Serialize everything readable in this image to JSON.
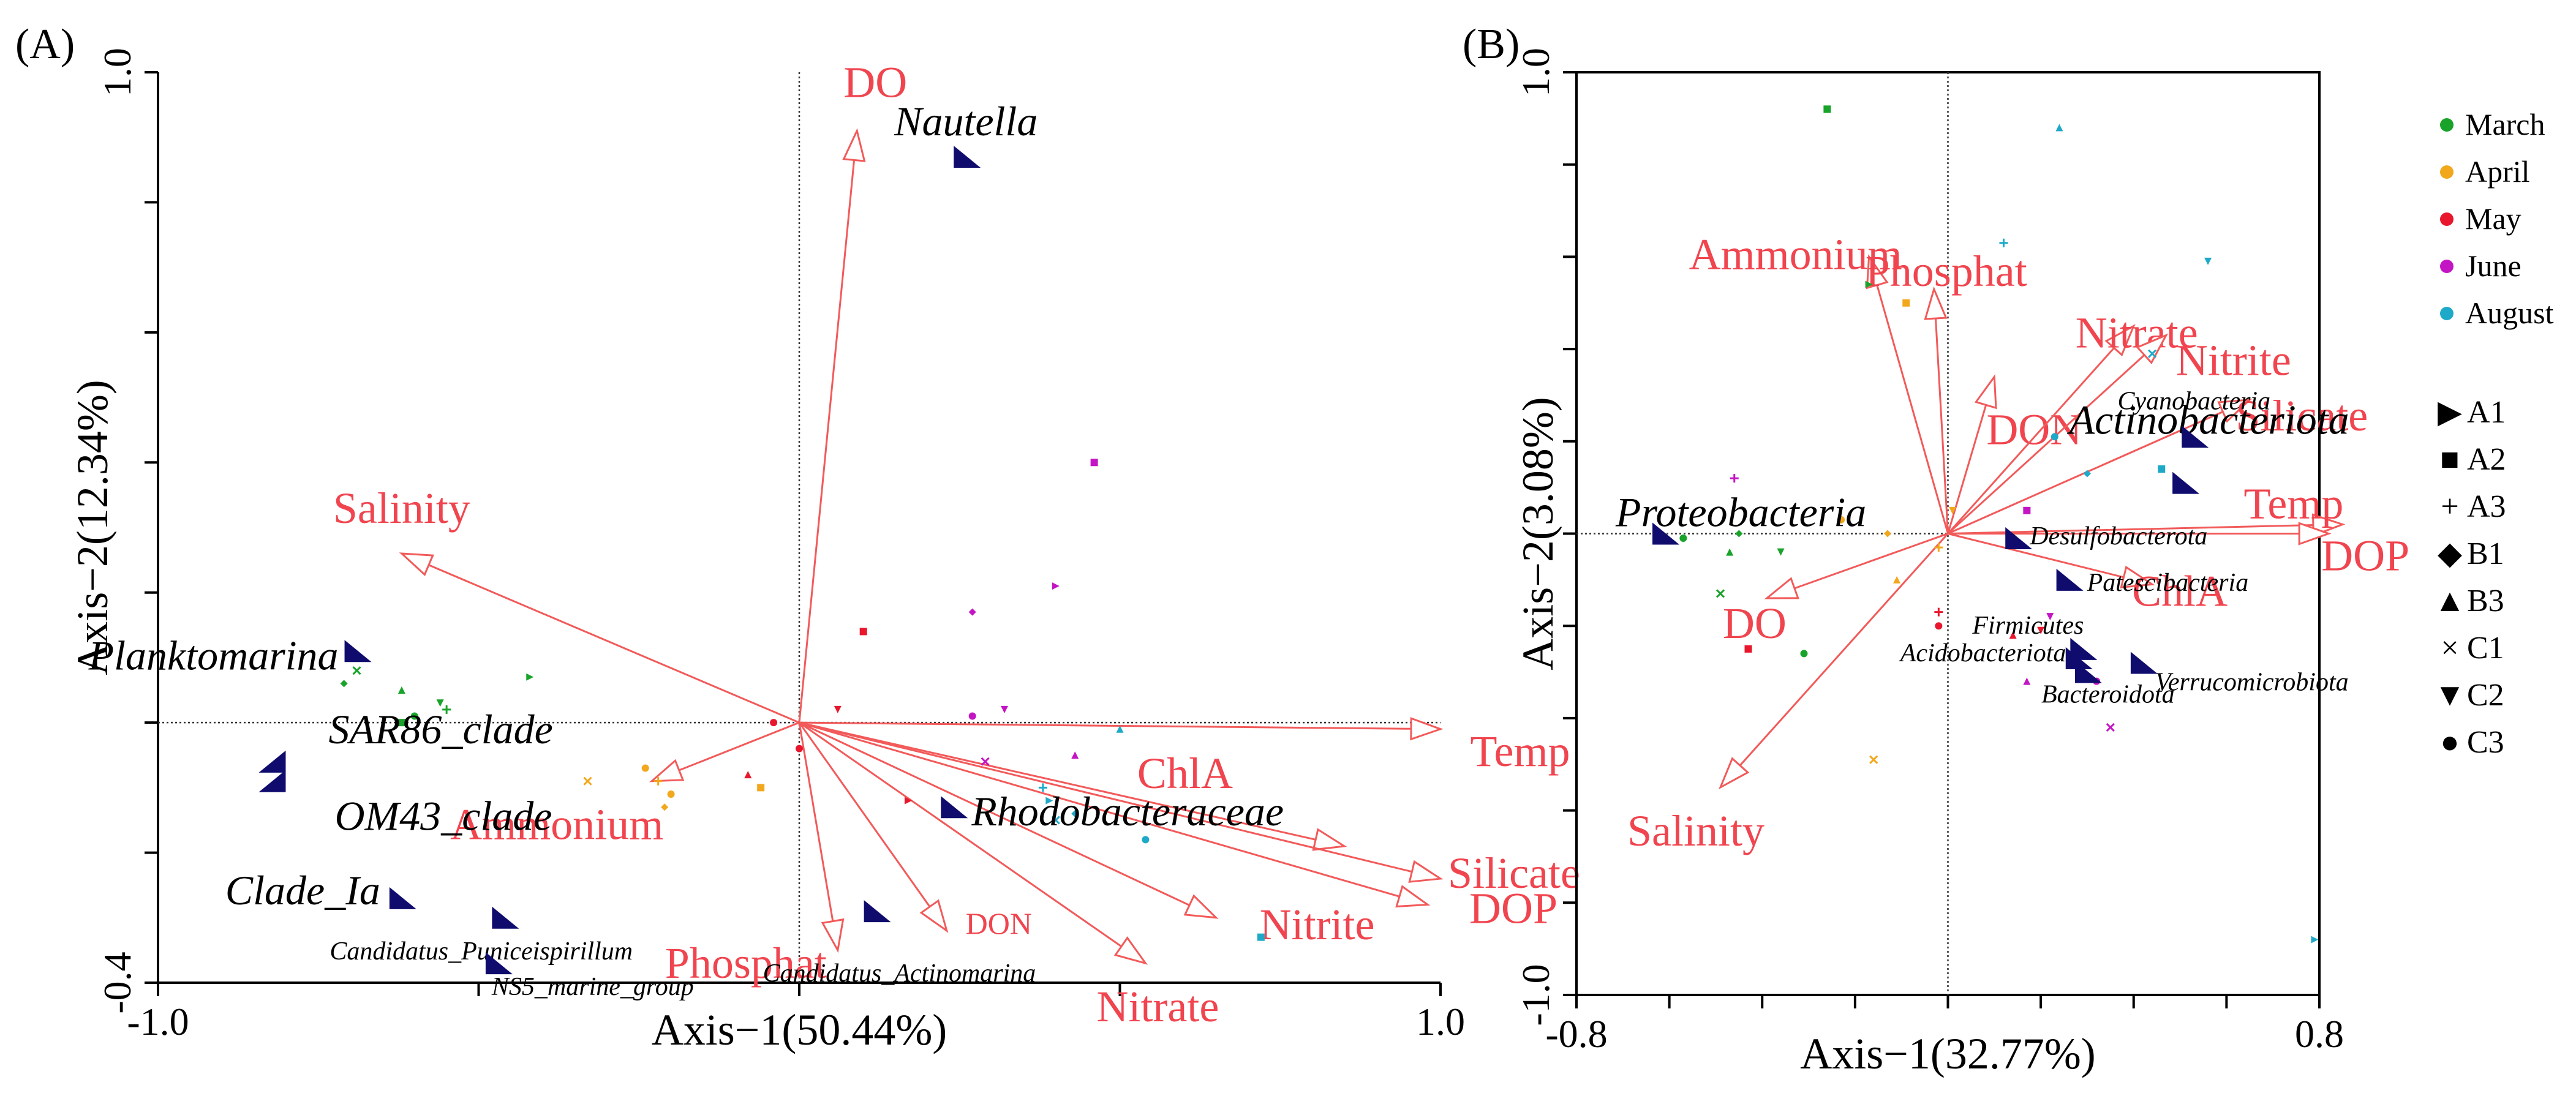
{
  "colors": {
    "env": "#f0454f",
    "arrow": "#f25a5a",
    "taxon": "#0f0c6e",
    "axis": "#000000"
  },
  "legend": {
    "months": [
      {
        "label": "March",
        "color": "#19a32a"
      },
      {
        "label": "April",
        "color": "#f2a81d"
      },
      {
        "label": "May",
        "color": "#e8172d"
      },
      {
        "label": "June",
        "color": "#c415c4"
      },
      {
        "label": "August",
        "color": "#1fa9c8"
      }
    ],
    "shapes": [
      {
        "label": "A1",
        "glyph": "▶"
      },
      {
        "label": "A2",
        "glyph": "■"
      },
      {
        "label": "A3",
        "glyph": "+"
      },
      {
        "label": "B1",
        "glyph": "◆"
      },
      {
        "label": "B3",
        "glyph": "▲"
      },
      {
        "label": "C1",
        "glyph": "×"
      },
      {
        "label": "C2",
        "glyph": "▼"
      },
      {
        "label": "C3",
        "glyph": "●"
      }
    ]
  },
  "chart_data": [
    {
      "type": "scatter",
      "panel_label": "(A)",
      "xlabel": "Axis−1(50.44%)",
      "ylabel": "Axis−2(12.34%)",
      "xlim": [
        -1.0,
        1.0
      ],
      "ylim": [
        -0.4,
        1.0
      ],
      "x_tick_labels": [
        {
          "v": -1.0,
          "t": "-1.0"
        },
        {
          "v": 1.0,
          "t": "1.0"
        }
      ],
      "y_tick_labels": [
        {
          "v": -0.4,
          "t": "-0.4"
        },
        {
          "v": 1.0,
          "t": "1.0"
        }
      ],
      "x_ticks": [
        -1.0,
        -0.5,
        0.0,
        0.5,
        1.0
      ],
      "y_ticks": [
        -0.4,
        -0.2,
        0.0,
        0.2,
        0.4,
        0.6,
        0.8,
        1.0
      ],
      "env_vectors": [
        {
          "label": "DO",
          "x": 0.09,
          "y": 0.91
        },
        {
          "label": "Salinity",
          "x": -0.62,
          "y": 0.26
        },
        {
          "label": "Ammonium",
          "x": -0.23,
          "y": -0.09
        },
        {
          "label": "Phosphat",
          "x": 0.06,
          "y": -0.35
        },
        {
          "label": "DON",
          "x": 0.23,
          "y": -0.32
        },
        {
          "label": "Nitrate",
          "x": 0.54,
          "y": -0.37
        },
        {
          "label": "Nitrite",
          "x": 0.65,
          "y": -0.3
        },
        {
          "label": "ChlA",
          "x": 0.85,
          "y": -0.19
        },
        {
          "label": "Silicate",
          "x": 1.0,
          "y": -0.24
        },
        {
          "label": "DOP",
          "x": 0.98,
          "y": -0.28
        },
        {
          "label": "Temp",
          "x": 1.0,
          "y": -0.01
        }
      ],
      "taxa": [
        {
          "label": "Nautella",
          "x": 0.26,
          "y": 0.87,
          "big": true
        },
        {
          "label": "Planktomarina",
          "x": -0.69,
          "y": 0.11,
          "big": true
        },
        {
          "label": "SAR86_clade",
          "x": -0.82,
          "y": -0.06,
          "big": true
        },
        {
          "label": "OM43_clade",
          "x": -0.82,
          "y": -0.09,
          "big": true
        },
        {
          "label": "Clade_Ia",
          "x": -0.62,
          "y": -0.27,
          "big": true
        },
        {
          "label": "Rhodobacteraceae",
          "x": 0.24,
          "y": -0.13,
          "big": true
        },
        {
          "label": "Candidatus_Actinomarina",
          "x": 0.12,
          "y": -0.29,
          "big": false
        },
        {
          "label": "Candidatus_Puniceispirillum",
          "x": -0.46,
          "y": -0.3,
          "big": false
        },
        {
          "label": "NS5_marine_group",
          "x": -0.47,
          "y": -0.37,
          "big": false
        }
      ],
      "samples": [
        {
          "month": 0,
          "shape": 3,
          "x": -0.71,
          "y": 0.06
        },
        {
          "month": 0,
          "shape": 5,
          "x": -0.69,
          "y": 0.08
        },
        {
          "month": 0,
          "shape": 4,
          "x": -0.62,
          "y": 0.05
        },
        {
          "month": 0,
          "shape": 1,
          "x": -0.62,
          "y": 0.0
        },
        {
          "month": 0,
          "shape": 7,
          "x": -0.6,
          "y": 0.01
        },
        {
          "month": 0,
          "shape": 2,
          "x": -0.55,
          "y": 0.02
        },
        {
          "month": 0,
          "shape": 0,
          "x": -0.42,
          "y": 0.07
        },
        {
          "month": 0,
          "shape": 6,
          "x": -0.56,
          "y": 0.03
        },
        {
          "month": 1,
          "shape": 5,
          "x": -0.33,
          "y": -0.09
        },
        {
          "month": 1,
          "shape": 7,
          "x": -0.24,
          "y": -0.07
        },
        {
          "month": 1,
          "shape": 2,
          "x": -0.22,
          "y": -0.09
        },
        {
          "month": 1,
          "shape": 3,
          "x": -0.21,
          "y": -0.13
        },
        {
          "month": 1,
          "shape": 1,
          "x": -0.06,
          "y": -0.1
        },
        {
          "month": 1,
          "shape": 7,
          "x": -0.2,
          "y": -0.11
        },
        {
          "month": 2,
          "shape": 1,
          "x": 0.1,
          "y": 0.14
        },
        {
          "month": 2,
          "shape": 4,
          "x": -0.08,
          "y": -0.08
        },
        {
          "month": 2,
          "shape": 7,
          "x": 0.0,
          "y": -0.04
        },
        {
          "month": 2,
          "shape": 6,
          "x": 0.06,
          "y": 0.02
        },
        {
          "month": 2,
          "shape": 0,
          "x": 0.17,
          "y": -0.12
        },
        {
          "month": 2,
          "shape": 7,
          "x": -0.04,
          "y": 0.0
        },
        {
          "month": 3,
          "shape": 1,
          "x": 0.46,
          "y": 0.4
        },
        {
          "month": 3,
          "shape": 0,
          "x": 0.4,
          "y": 0.21
        },
        {
          "month": 3,
          "shape": 3,
          "x": 0.27,
          "y": 0.17
        },
        {
          "month": 3,
          "shape": 7,
          "x": 0.27,
          "y": 0.01
        },
        {
          "month": 3,
          "shape": 6,
          "x": 0.32,
          "y": 0.02
        },
        {
          "month": 3,
          "shape": 5,
          "x": 0.29,
          "y": -0.06
        },
        {
          "month": 3,
          "shape": 4,
          "x": 0.43,
          "y": -0.05
        },
        {
          "month": 4,
          "shape": 1,
          "x": 0.72,
          "y": -0.33
        },
        {
          "month": 4,
          "shape": 0,
          "x": 0.39,
          "y": -0.12
        },
        {
          "month": 4,
          "shape": 7,
          "x": 0.54,
          "y": -0.18
        },
        {
          "month": 4,
          "shape": 2,
          "x": 0.38,
          "y": -0.1
        },
        {
          "month": 4,
          "shape": 4,
          "x": 0.5,
          "y": -0.01
        },
        {
          "month": 4,
          "shape": 5,
          "x": 0.4,
          "y": -0.15
        },
        {
          "month": 4,
          "shape": 3,
          "x": 0.43,
          "y": -0.14
        }
      ]
    },
    {
      "type": "scatter",
      "panel_label": "(B)",
      "xlabel": "Axis−1(32.77%)",
      "ylabel": "Axis−2(3.08%)",
      "xlim": [
        -0.8,
        0.8
      ],
      "ylim": [
        -1.0,
        1.0
      ],
      "x_tick_labels": [
        {
          "v": -0.8,
          "t": "-0.8"
        },
        {
          "v": 0.8,
          "t": "0.8"
        }
      ],
      "y_tick_labels": [
        {
          "v": -1.0,
          "t": "-1.0"
        },
        {
          "v": 1.0,
          "t": "1.0"
        }
      ],
      "x_ticks": [
        -0.8,
        -0.6,
        -0.4,
        -0.2,
        0.0,
        0.2,
        0.4,
        0.6,
        0.8
      ],
      "y_ticks": [
        -1.0,
        -0.8,
        -0.6,
        -0.4,
        -0.2,
        0.0,
        0.2,
        0.4,
        0.6,
        0.8,
        1.0
      ],
      "env_vectors": [
        {
          "label": "Ammonium",
          "x": -0.17,
          "y": 0.6
        },
        {
          "label": "Phosphat",
          "x": -0.03,
          "y": 0.53
        },
        {
          "label": "DON",
          "x": 0.1,
          "y": 0.34
        },
        {
          "label": "Nitrate",
          "x": 0.4,
          "y": 0.45
        },
        {
          "label": "Nitrite",
          "x": 0.47,
          "y": 0.43
        },
        {
          "label": "Silicate",
          "x": 0.65,
          "y": 0.29
        },
        {
          "label": "Temp",
          "x": 0.85,
          "y": 0.02
        },
        {
          "label": "DOP",
          "x": 0.82,
          "y": 0.0
        },
        {
          "label": "ChlA",
          "x": 0.44,
          "y": -0.11
        },
        {
          "label": "DO",
          "x": -0.39,
          "y": -0.14
        },
        {
          "label": "Salinity",
          "x": -0.49,
          "y": -0.55
        }
      ],
      "taxa": [
        {
          "label": "Actinobacteriota",
          "x": 0.51,
          "y": 0.11,
          "big": true
        },
        {
          "label": "Proteobacteria",
          "x": -0.61,
          "y": 0.0,
          "big": true
        },
        {
          "label": "Cyanobacteria",
          "x": 0.53,
          "y": 0.21,
          "big": false
        },
        {
          "label": "Desulfobacterota",
          "x": 0.15,
          "y": -0.01,
          "big": false
        },
        {
          "label": "Patescibacteria",
          "x": 0.26,
          "y": -0.1,
          "big": false
        },
        {
          "label": "Firmicutes",
          "x": 0.29,
          "y": -0.25,
          "big": false
        },
        {
          "label": "Acidobacteriota",
          "x": 0.28,
          "y": -0.27,
          "big": false
        },
        {
          "label": "Verrucomicrobiota",
          "x": 0.42,
          "y": -0.28,
          "big": false
        },
        {
          "label": "Bacteroidota",
          "x": 0.3,
          "y": -0.3,
          "big": false
        }
      ],
      "samples": [
        {
          "month": 0,
          "shape": 1,
          "x": -0.26,
          "y": 0.92
        },
        {
          "month": 0,
          "shape": 0,
          "x": -0.17,
          "y": 0.54
        },
        {
          "month": 0,
          "shape": 7,
          "x": -0.57,
          "y": -0.01
        },
        {
          "month": 0,
          "shape": 3,
          "x": -0.45,
          "y": 0.0
        },
        {
          "month": 0,
          "shape": 4,
          "x": -0.47,
          "y": -0.04
        },
        {
          "month": 0,
          "shape": 5,
          "x": -0.49,
          "y": -0.13
        },
        {
          "month": 0,
          "shape": 6,
          "x": -0.36,
          "y": -0.04
        },
        {
          "month": 0,
          "shape": 7,
          "x": -0.31,
          "y": -0.26
        },
        {
          "month": 1,
          "shape": 1,
          "x": -0.09,
          "y": 0.5
        },
        {
          "month": 1,
          "shape": 4,
          "x": -0.11,
          "y": -0.1
        },
        {
          "month": 1,
          "shape": 7,
          "x": -0.23,
          "y": 0.03
        },
        {
          "month": 1,
          "shape": 2,
          "x": -0.02,
          "y": -0.03
        },
        {
          "month": 1,
          "shape": 5,
          "x": -0.16,
          "y": -0.49
        },
        {
          "month": 1,
          "shape": 6,
          "x": 0.01,
          "y": 0.05
        },
        {
          "month": 1,
          "shape": 3,
          "x": -0.13,
          "y": 0.0
        },
        {
          "month": 2,
          "shape": 1,
          "x": -0.43,
          "y": -0.25
        },
        {
          "month": 2,
          "shape": 2,
          "x": -0.02,
          "y": -0.17
        },
        {
          "month": 2,
          "shape": 7,
          "x": -0.02,
          "y": -0.2
        },
        {
          "month": 2,
          "shape": 4,
          "x": 0.14,
          "y": -0.22
        },
        {
          "month": 2,
          "shape": 6,
          "x": 0.2,
          "y": -0.21
        },
        {
          "month": 3,
          "shape": 2,
          "x": -0.46,
          "y": 0.12
        },
        {
          "month": 3,
          "shape": 1,
          "x": 0.17,
          "y": 0.05
        },
        {
          "month": 3,
          "shape": 4,
          "x": 0.17,
          "y": -0.32
        },
        {
          "month": 3,
          "shape": 5,
          "x": 0.35,
          "y": -0.42
        },
        {
          "month": 3,
          "shape": 7,
          "x": 0.32,
          "y": -0.32
        },
        {
          "month": 3,
          "shape": 6,
          "x": 0.22,
          "y": -0.18
        },
        {
          "month": 4,
          "shape": 4,
          "x": 0.24,
          "y": 0.88
        },
        {
          "month": 4,
          "shape": 2,
          "x": 0.12,
          "y": 0.63
        },
        {
          "month": 4,
          "shape": 6,
          "x": 0.56,
          "y": 0.59
        },
        {
          "month": 4,
          "shape": 5,
          "x": 0.44,
          "y": 0.39
        },
        {
          "month": 4,
          "shape": 1,
          "x": 0.46,
          "y": 0.14
        },
        {
          "month": 4,
          "shape": 7,
          "x": 0.23,
          "y": 0.21
        },
        {
          "month": 4,
          "shape": 0,
          "x": 0.79,
          "y": -0.88
        },
        {
          "month": 4,
          "shape": 3,
          "x": 0.3,
          "y": 0.13
        }
      ]
    }
  ]
}
